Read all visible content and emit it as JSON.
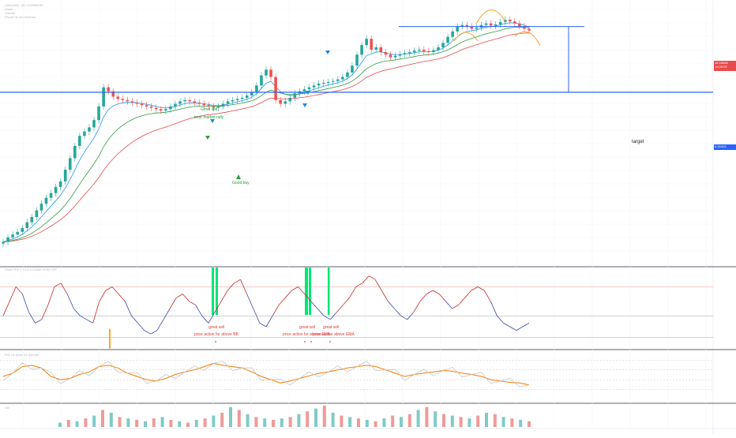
{
  "header": {
    "symbol_line": "LINK/USD, 3D, COINBASE",
    "line2": "Close",
    "line3": "Volume",
    "line4": "Pivots HL 5,5 Inverted"
  },
  "panes": {
    "stoch_label": "Stoch RSI 3 3 14 14 close 20 80 OFF",
    "rsi_label": "RSI 14 close 14 Smooth",
    "vol_label": "Vol"
  },
  "price_axis": {
    "last_price": "16.26068",
    "last_countdown": "1d 08:25",
    "level_price": "5.30403"
  },
  "annotations": {
    "good_sell": "Good sell",
    "bear_market_rally": "bear market rally",
    "good_buy": "Good buy",
    "target": "target",
    "great_sell_1": "great sell",
    "price_action_below": "price action for above BB",
    "great_sell_2": "great sell",
    "above_ema": "price action for above EMA",
    "great_sell_3": "great sell",
    "above_ema_2": "price action above EMA"
  },
  "colors": {
    "up": "#26a69a",
    "down": "#ef5350",
    "ema_fast": "#2196f3",
    "ema_mid": "#2e9d3f",
    "ema_slow": "#e5484d",
    "level": "#2962ff",
    "head_shoulders": "#f5a623",
    "sell_marker": "#1e88e5",
    "buy_marker": "#2e9d3f"
  },
  "chart_data": {
    "type": "candlestick",
    "price_line_close": [
      0.35,
      0.38,
      0.4,
      0.42,
      0.45,
      0.5,
      0.55,
      0.62,
      0.7,
      0.78,
      0.85,
      0.95,
      1.05,
      1.3,
      1.6,
      2.0,
      2.4,
      2.6,
      2.8,
      3.2,
      4.1,
      5.8,
      5.4,
      4.9,
      4.7,
      4.6,
      4.5,
      4.4,
      4.3,
      4.2,
      4.1,
      4.0,
      3.9,
      3.8,
      3.9,
      4.1,
      4.3,
      4.5,
      4.6,
      4.5,
      4.4,
      4.3,
      4.2,
      4.1,
      4.0,
      4.1,
      4.3,
      4.5,
      4.6,
      4.7,
      4.8,
      5.0,
      5.3,
      6.0,
      7.2,
      8.0,
      7.0,
      4.6,
      4.3,
      4.5,
      4.8,
      5.2,
      5.4,
      5.6,
      5.8,
      6.0,
      6.2,
      6.3,
      6.4,
      6.5,
      6.7,
      7.0,
      7.6,
      8.6,
      10.5,
      12.5,
      14.0,
      11.5,
      12.0,
      11.0,
      10.5,
      10.0,
      10.3,
      10.6,
      10.8,
      11.0,
      11.3,
      11.5,
      11.2,
      11.0,
      11.4,
      12.0,
      13.0,
      14.5,
      16.0,
      17.5,
      18.0,
      17.5,
      16.8,
      17.2,
      18.0,
      18.5,
      17.8,
      18.2,
      19.0,
      19.8,
      19.2,
      18.5,
      17.6,
      16.8,
      16.26
    ],
    "level_target": 5.30403,
    "neckline": 17.5,
    "stoch_rsi": [
      40,
      60,
      80,
      70,
      45,
      30,
      35,
      55,
      80,
      85,
      70,
      50,
      40,
      35,
      30,
      60,
      75,
      80,
      70,
      60,
      40,
      30,
      20,
      15,
      20,
      35,
      50,
      65,
      70,
      60,
      55,
      40,
      30,
      45,
      60,
      75,
      85,
      90,
      70,
      50,
      30,
      25,
      40,
      55,
      65,
      75,
      80,
      70,
      60,
      50,
      40,
      35,
      45,
      55,
      65,
      80,
      85,
      95,
      90,
      75,
      60,
      50,
      40,
      35,
      45,
      60,
      70,
      75,
      70,
      60,
      50,
      55,
      65,
      75,
      80,
      75,
      60,
      40,
      30,
      25,
      20,
      25,
      30
    ],
    "rsi": [
      55,
      60,
      70,
      72,
      68,
      55,
      50,
      52,
      58,
      62,
      70,
      72,
      68,
      60,
      55,
      50,
      48,
      52,
      58,
      62,
      65,
      70,
      75,
      72,
      70,
      68,
      62,
      55,
      50,
      45,
      48,
      52,
      56,
      60,
      62,
      65,
      68,
      70,
      72,
      70,
      65,
      60,
      55,
      58,
      60,
      62,
      64,
      63,
      60,
      58,
      55,
      50,
      48,
      46,
      45,
      42
    ],
    "volume": [
      3,
      5,
      4,
      6,
      8,
      12,
      10,
      7,
      6,
      5,
      4,
      6,
      7,
      5,
      4,
      3,
      5,
      6,
      8,
      10,
      14,
      12,
      9,
      7,
      6,
      5,
      6,
      7,
      9,
      11,
      13,
      15,
      10,
      8,
      7,
      6,
      5,
      4,
      6,
      8,
      7,
      9,
      12,
      14,
      11,
      9,
      8,
      7,
      6,
      8,
      10,
      9,
      7,
      6,
      5,
      4
    ]
  }
}
